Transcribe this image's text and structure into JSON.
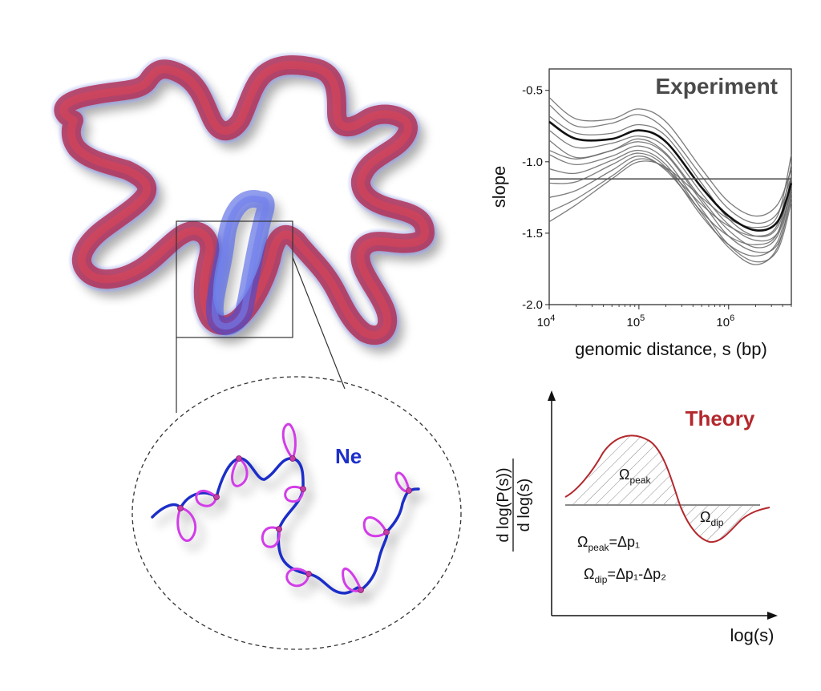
{
  "ne_label": "Ne",
  "experiment": {
    "title": "Experiment",
    "chart_data": {
      "type": "line",
      "title": "Experiment",
      "xlabel": "genomic distance, s (bp)",
      "ylabel": "slope",
      "x_scale": "log",
      "xlim": [
        10000,
        5000000
      ],
      "ylim": [
        -2.0,
        -0.35
      ],
      "x_ticks": [
        "10",
        "10",
        "10"
      ],
      "x_tick_exponents": [
        "4",
        "5",
        "6"
      ],
      "y_ticks": [
        "-0.5",
        "-1.0",
        "-1.5",
        "-2.0"
      ],
      "y_tick_values": [
        -0.5,
        -1.0,
        -1.5,
        -2.0
      ],
      "reference_line": -1.12,
      "x": [
        10000,
        20000,
        50000,
        100000,
        200000,
        500000,
        1000000,
        2000000,
        3500000,
        5000000
      ],
      "series": [
        {
          "values": [
            -0.72,
            -0.84,
            -0.84,
            -0.78,
            -0.86,
            -1.18,
            -1.38,
            -1.48,
            -1.42,
            -1.15
          ]
        },
        {
          "values": [
            -0.55,
            -0.7,
            -0.7,
            -0.63,
            -0.72,
            -1.05,
            -1.28,
            -1.38,
            -1.3,
            -1.05
          ]
        },
        {
          "values": [
            -0.6,
            -0.75,
            -0.73,
            -0.67,
            -0.78,
            -1.1,
            -1.33,
            -1.43,
            -1.36,
            -1.1
          ]
        },
        {
          "values": [
            -0.78,
            -0.9,
            -0.87,
            -0.82,
            -0.9,
            -1.22,
            -1.44,
            -1.55,
            -1.5,
            -1.2
          ]
        },
        {
          "values": [
            -0.85,
            -0.97,
            -0.92,
            -0.86,
            -0.95,
            -1.28,
            -1.52,
            -1.63,
            -1.58,
            -1.25
          ]
        },
        {
          "values": [
            -0.95,
            -1.02,
            -0.96,
            -0.89,
            -0.99,
            -1.33,
            -1.58,
            -1.7,
            -1.62,
            -1.28
          ]
        },
        {
          "values": [
            -1.05,
            -1.08,
            -0.99,
            -0.92,
            -1.02,
            -1.36,
            -1.6,
            -1.72,
            -1.6,
            -1.22
          ]
        },
        {
          "values": [
            -1.15,
            -1.14,
            -1.02,
            -0.94,
            -1.04,
            -1.38,
            -1.58,
            -1.66,
            -1.56,
            -1.18
          ]
        },
        {
          "values": [
            -1.25,
            -1.2,
            -1.06,
            -0.96,
            -1.06,
            -1.35,
            -1.52,
            -1.58,
            -1.5,
            -1.1
          ]
        },
        {
          "values": [
            -1.35,
            -1.26,
            -1.1,
            -0.98,
            -1.05,
            -1.3,
            -1.45,
            -1.52,
            -1.44,
            -1.02
          ]
        },
        {
          "values": [
            -1.42,
            -1.3,
            -1.12,
            -1.0,
            -1.04,
            -1.25,
            -1.4,
            -1.46,
            -1.38,
            -0.95
          ]
        },
        {
          "values": [
            -0.68,
            -0.8,
            -0.8,
            -0.74,
            -0.82,
            -1.15,
            -1.4,
            -1.52,
            -1.46,
            -1.12
          ]
        },
        {
          "values": [
            -0.92,
            -0.98,
            -0.92,
            -0.84,
            -0.94,
            -1.26,
            -1.48,
            -1.6,
            -1.52,
            -1.16
          ]
        }
      ],
      "grid": false,
      "legend": "none"
    }
  },
  "theory": {
    "title": "Theory",
    "ylabel_num": "d log(P(s))",
    "ylabel_den": "d log(s)",
    "xlabel": "log(s)",
    "omega": "Ω",
    "sub_peak": "peak",
    "sub_dip": "dip",
    "eq1_rhs": "=Δp₁",
    "eq2_rhs": "=Δp₁-Δp₂",
    "colors": {
      "curve": "#b3282d",
      "title": "#b3282d"
    }
  },
  "colors": {
    "polymer_red": "#c8283a",
    "polymer_blue": "#3b4fe0",
    "chain": "#1d2fc8",
    "loop": "#d23ee8",
    "anchor": "#c93aa8"
  }
}
